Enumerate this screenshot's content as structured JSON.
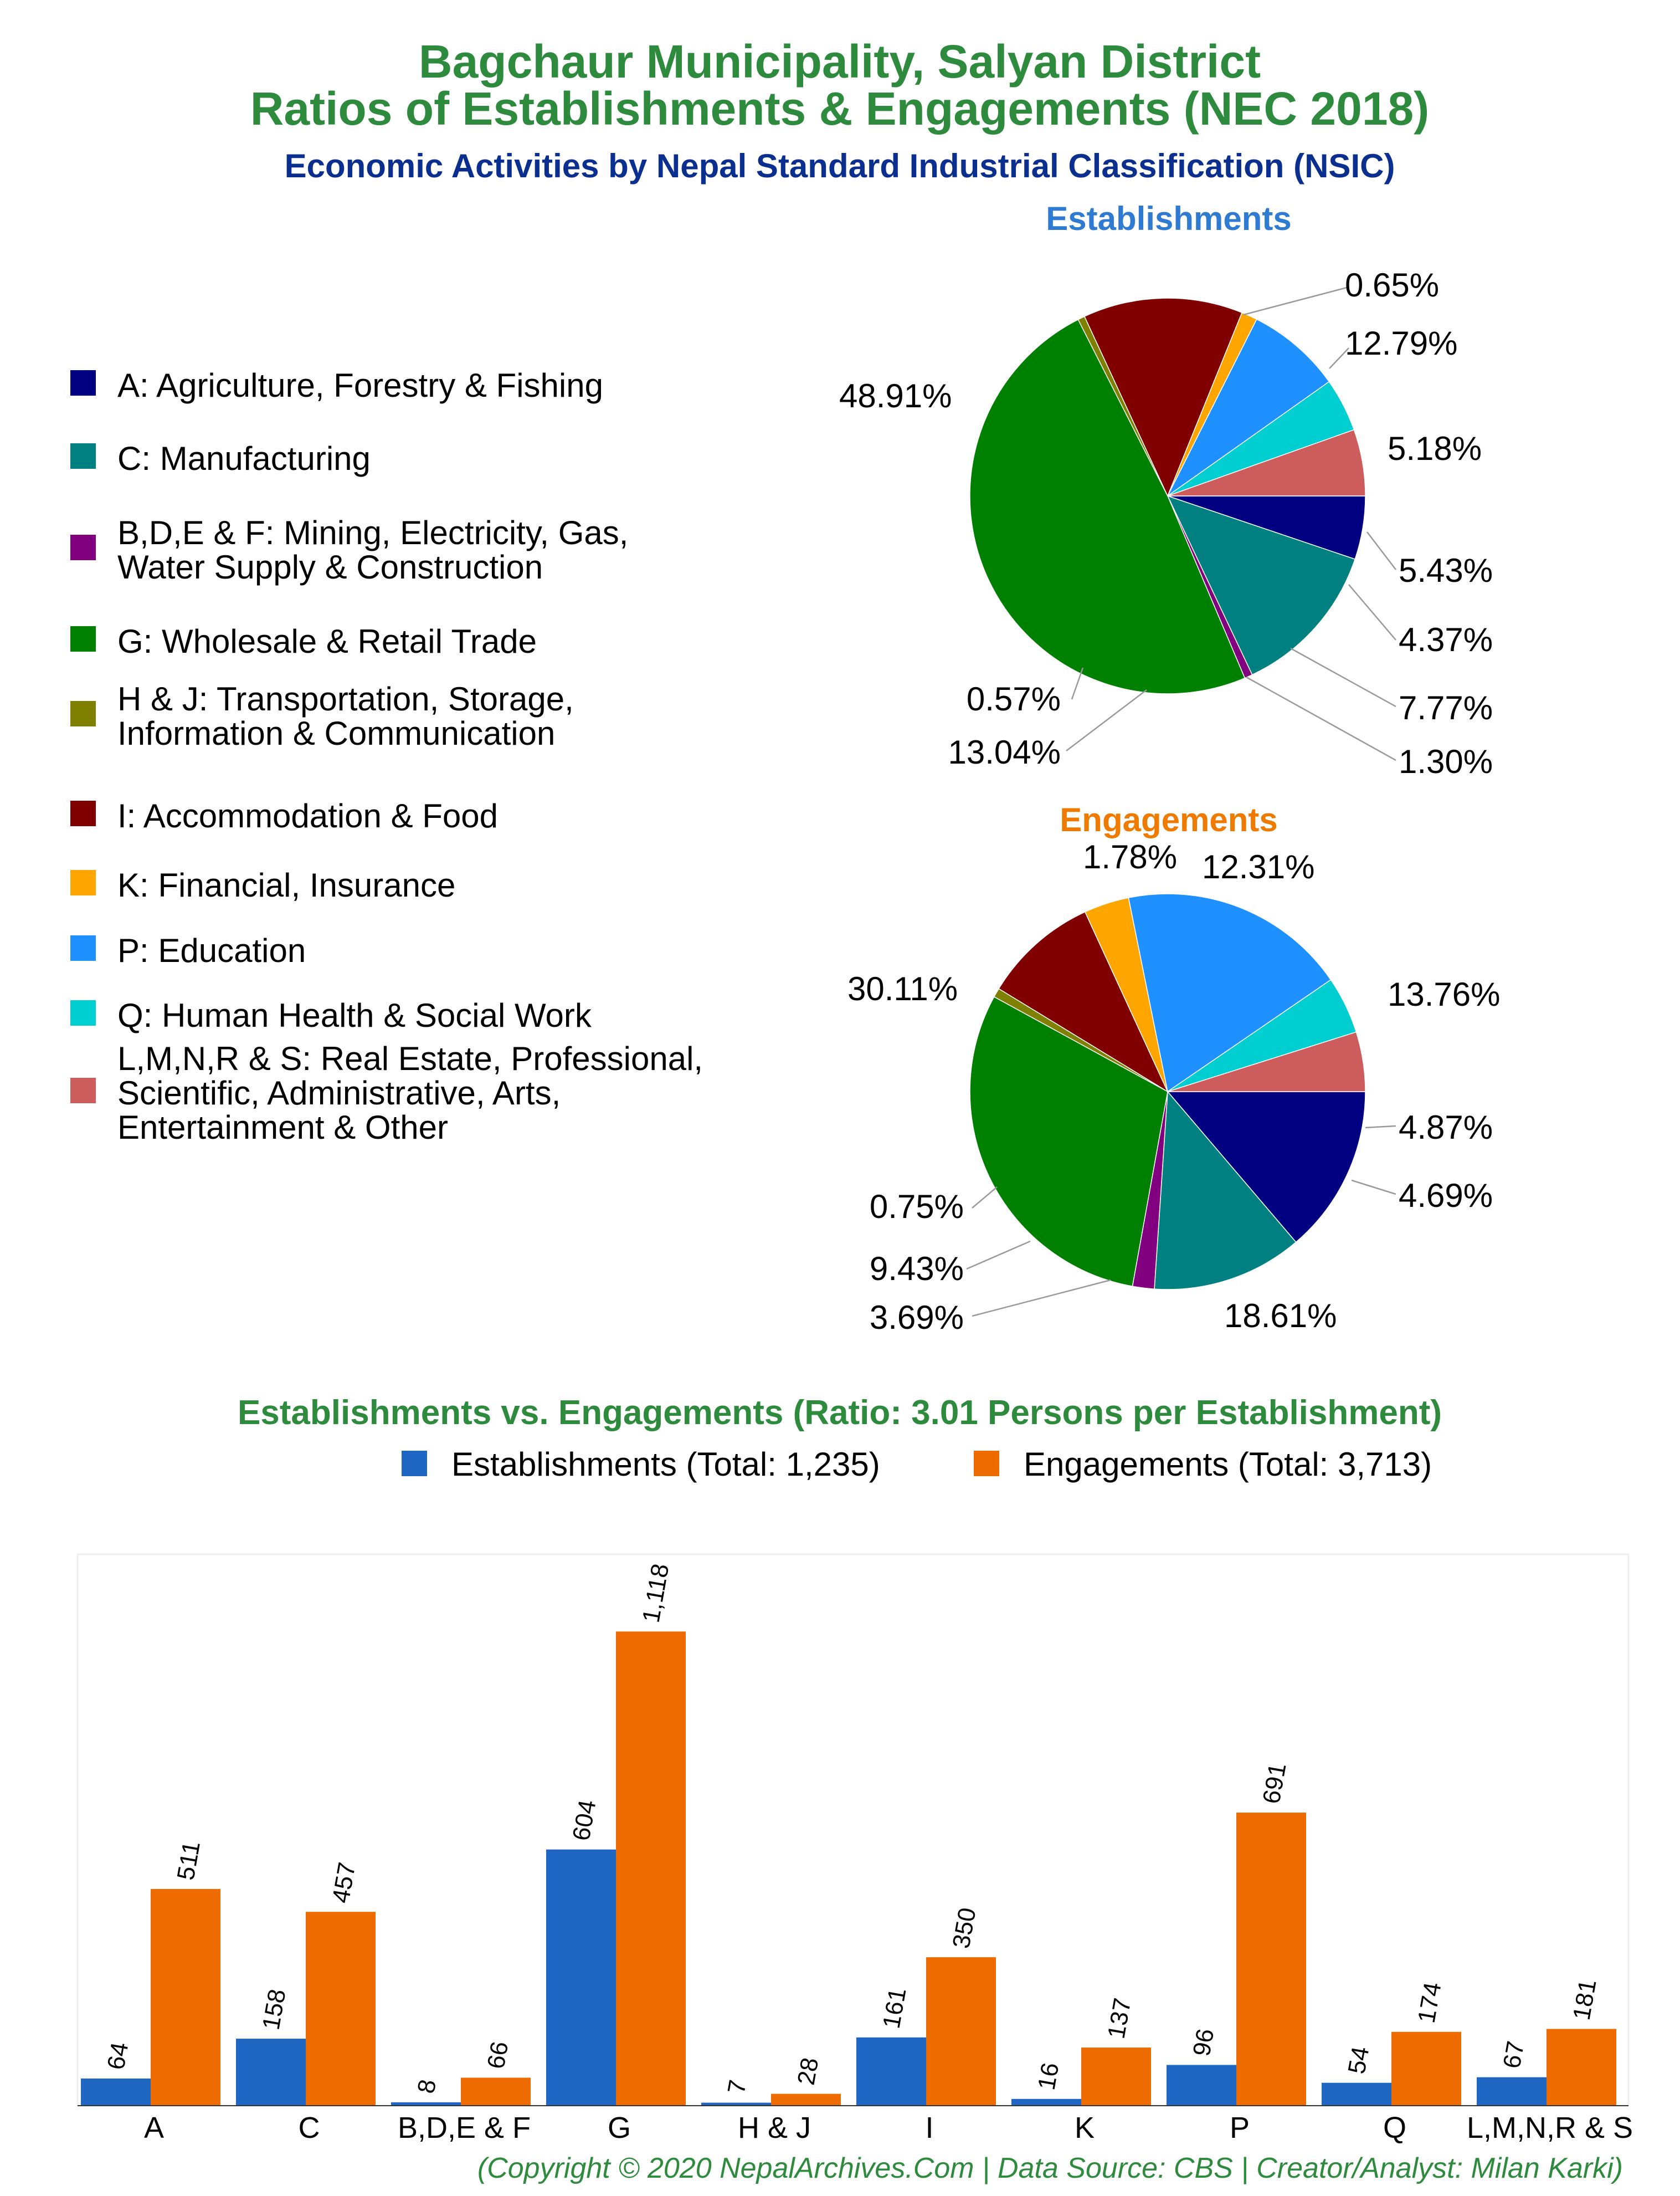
{
  "title_line1": "Bagchaur Municipality, Salyan District",
  "title_line2": "Ratios of Establishments & Engagements (NEC 2018)",
  "subtitle": "Economic Activities by Nepal Standard Industrial Classification (NSIC)",
  "colors": {
    "title": "#2e8b3e",
    "subtitle": "#0b2f8f",
    "establishments_title": "#2f7bd1",
    "engagements_title": "#ef7a00",
    "establishments_bar": "#1f66c2",
    "engagements_bar": "#ee6b00"
  },
  "legend": [
    {
      "label_lines": [
        "A: Agriculture, Forestry & Fishing"
      ],
      "color": "#000080"
    },
    {
      "label_lines": [
        "C: Manufacturing"
      ],
      "color": "#008080"
    },
    {
      "label_lines": [
        "B,D,E & F: Mining, Electricity, Gas,",
        "Water Supply & Construction"
      ],
      "color": "#800080"
    },
    {
      "label_lines": [
        "G: Wholesale & Retail Trade"
      ],
      "color": "#008000"
    },
    {
      "label_lines": [
        "H & J: Transportation, Storage,",
        "Information & Communication"
      ],
      "color": "#808000"
    },
    {
      "label_lines": [
        "I: Accommodation & Food"
      ],
      "color": "#800000"
    },
    {
      "label_lines": [
        "K: Financial, Insurance"
      ],
      "color": "#ffa500"
    },
    {
      "label_lines": [
        "P: Education"
      ],
      "color": "#1e90ff"
    },
    {
      "label_lines": [
        "Q: Human Health & Social Work"
      ],
      "color": "#00ced1"
    },
    {
      "label_lines": [
        "L,M,N,R & S: Real Estate, Professional,",
        "Scientific, Administrative, Arts,",
        "Entertainment & Other"
      ],
      "color": "#cd5c5c"
    }
  ],
  "bar_title": "Establishments vs. Engagements (Ratio: 3.01 Persons per Establishment)",
  "bar_legend": [
    "Establishments (Total: 1,235)",
    "Engagements (Total: 3,713)"
  ],
  "footer": "(Copyright © 2020 NepalArchives.Com | Data Source: CBS | Creator/Analyst: Milan Karki)",
  "chart_data": [
    {
      "type": "pie",
      "title": "Establishments",
      "categories": [
        "A",
        "C",
        "B,D,E & F",
        "G",
        "H & J",
        "I",
        "K",
        "P",
        "Q",
        "L,M,N,R & S"
      ],
      "values": [
        5.18,
        12.79,
        0.65,
        48.91,
        0.57,
        13.04,
        1.3,
        7.77,
        4.37,
        5.43
      ],
      "labels": [
        "5.18%",
        "12.79%",
        "0.65%",
        "48.91%",
        "0.57%",
        "13.04%",
        "1.30%",
        "7.77%",
        "4.37%",
        "5.43%"
      ]
    },
    {
      "type": "pie",
      "title": "Engagements",
      "categories": [
        "A",
        "C",
        "B,D,E & F",
        "G",
        "H & J",
        "I",
        "K",
        "P",
        "Q",
        "L,M,N,R & S"
      ],
      "values": [
        13.76,
        12.31,
        1.78,
        30.11,
        0.75,
        9.43,
        3.69,
        18.61,
        4.69,
        4.87
      ],
      "labels": [
        "13.76%",
        "12.31%",
        "1.78%",
        "30.11%",
        "0.75%",
        "9.43%",
        "3.69%",
        "18.61%",
        "4.69%",
        "4.87%"
      ]
    },
    {
      "type": "bar",
      "categories": [
        "A",
        "C",
        "B,D,E & F",
        "G",
        "H & J",
        "I",
        "K",
        "P",
        "Q",
        "L,M,N,R & S"
      ],
      "series": [
        {
          "name": "Establishments",
          "values": [
            64,
            158,
            8,
            604,
            7,
            161,
            16,
            96,
            54,
            67
          ],
          "labels": [
            "64",
            "158",
            "8",
            "604",
            "7",
            "161",
            "16",
            "96",
            "54",
            "67"
          ]
        },
        {
          "name": "Engagements",
          "values": [
            511,
            457,
            66,
            1118,
            28,
            350,
            137,
            691,
            174,
            181
          ],
          "labels": [
            "511",
            "457",
            "66",
            "1,118",
            "28",
            "350",
            "137",
            "691",
            "174",
            "181"
          ]
        }
      ],
      "ylim": [
        0,
        1300
      ]
    }
  ]
}
